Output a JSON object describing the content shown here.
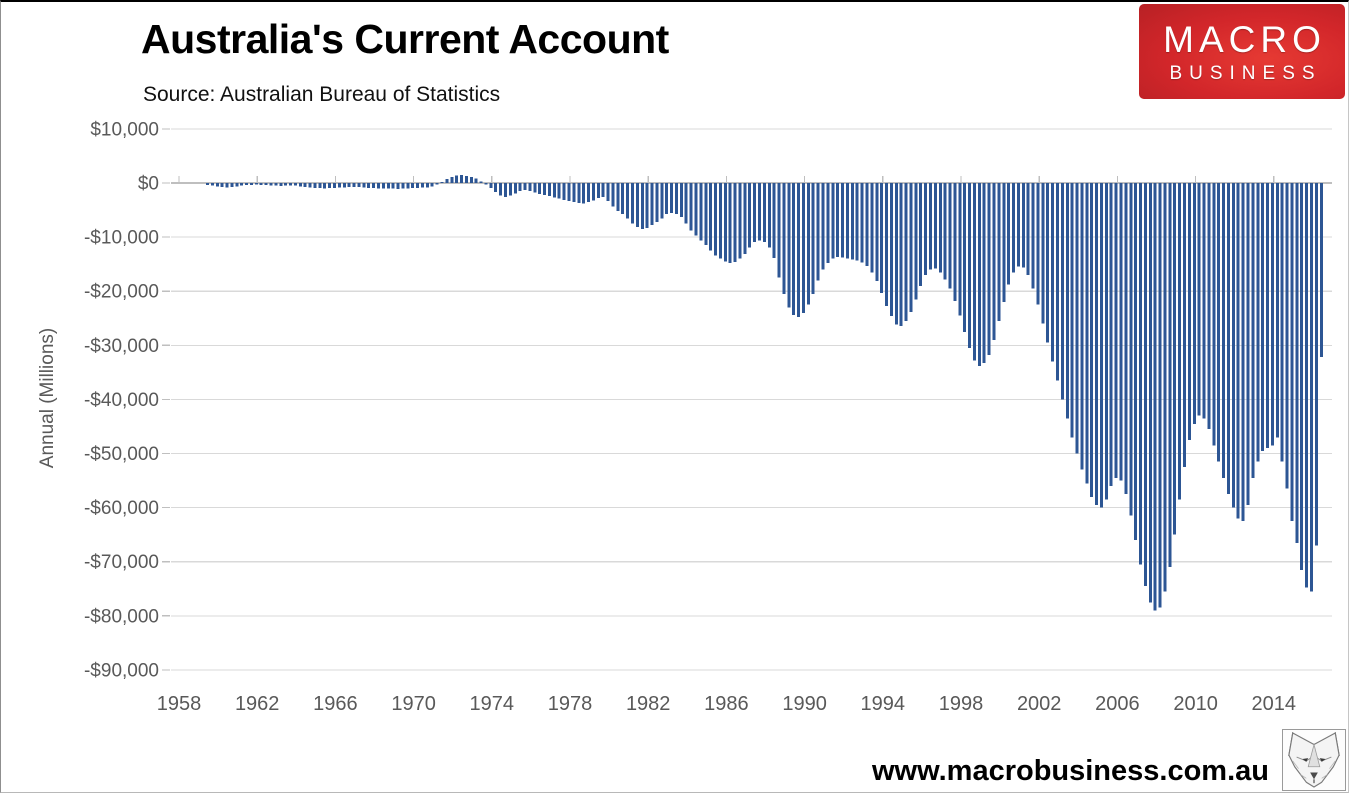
{
  "header": {
    "title": "Australia's Current Account",
    "source": "Source: Australian Bureau of Statistics",
    "logo": {
      "line1": "MACRO",
      "line2": "BUSINESS",
      "background_color": "#d2262a",
      "text_color": "#ffffff"
    }
  },
  "footer": {
    "watermark": "www.macrobusiness.com.au",
    "wolf_icon": "wolf-sketch-icon"
  },
  "chart_data": {
    "type": "bar",
    "title": "Australia's Current Account",
    "subtitle": "Source: Australian Bureau of Statistics",
    "ylabel": "Annual (Millions)",
    "xlabel": "",
    "unit": "AUD millions, rolling annual total, quarterly observations",
    "grid": true,
    "legend": "none",
    "bar_color": "#2d5694",
    "grid_color": "#d9d9d9",
    "axis_color": "#bfbfbf",
    "tick_text_color": "#595959",
    "ylim": [
      -90000,
      10000
    ],
    "y_ticks": [
      {
        "value": 10000,
        "label": "$10,000"
      },
      {
        "value": 0,
        "label": "$0"
      },
      {
        "value": -10000,
        "label": "-$10,000"
      },
      {
        "value": -20000,
        "label": "-$20,000"
      },
      {
        "value": -30000,
        "label": "-$30,000"
      },
      {
        "value": -40000,
        "label": "-$40,000"
      },
      {
        "value": -50000,
        "label": "-$50,000"
      },
      {
        "value": -60000,
        "label": "-$60,000"
      },
      {
        "value": -70000,
        "label": "-$70,000"
      },
      {
        "value": -80000,
        "label": "-$80,000"
      },
      {
        "value": -90000,
        "label": "-$90,000"
      }
    ],
    "x_ticks": [
      1958,
      1962,
      1966,
      1970,
      1974,
      1978,
      1982,
      1986,
      1990,
      1994,
      1998,
      2002,
      2006,
      2010,
      2014
    ],
    "frequency": "quarterly",
    "start_year": 1959.5,
    "step_years": 0.25,
    "values": [
      -350,
      -500,
      -650,
      -750,
      -800,
      -750,
      -650,
      -500,
      -400,
      -350,
      -300,
      -350,
      -400,
      -450,
      -500,
      -550,
      -500,
      -450,
      -500,
      -600,
      -700,
      -800,
      -900,
      -950,
      -1000,
      -950,
      -900,
      -850,
      -800,
      -750,
      -700,
      -750,
      -800,
      -900,
      -950,
      -1000,
      -1050,
      -1000,
      -1050,
      -1100,
      -1050,
      -1000,
      -950,
      -900,
      -850,
      -800,
      -600,
      -300,
      200,
      700,
      1100,
      1400,
      1500,
      1300,
      1100,
      800,
      300,
      -300,
      -900,
      -1700,
      -2300,
      -2600,
      -2300,
      -1900,
      -1500,
      -1300,
      -1500,
      -1800,
      -2000,
      -2200,
      -2400,
      -2700,
      -2900,
      -3100,
      -3300,
      -3500,
      -3700,
      -3800,
      -3500,
      -3200,
      -2800,
      -2600,
      -3300,
      -4300,
      -5200,
      -5700,
      -6600,
      -7500,
      -8100,
      -8500,
      -8300,
      -7800,
      -7200,
      -6600,
      -5700,
      -5500,
      -5700,
      -6300,
      -7500,
      -8800,
      -9700,
      -10600,
      -11500,
      -12500,
      -13400,
      -14000,
      -14500,
      -14800,
      -14600,
      -14000,
      -13100,
      -11900,
      -10900,
      -10600,
      -10900,
      -11900,
      -13900,
      -17500,
      -20500,
      -23000,
      -24400,
      -24800,
      -24000,
      -22500,
      -20500,
      -18000,
      -16000,
      -14800,
      -14000,
      -13700,
      -13800,
      -14000,
      -14100,
      -14300,
      -14700,
      -15300,
      -16500,
      -18100,
      -20300,
      -22700,
      -24600,
      -26200,
      -26400,
      -25500,
      -23800,
      -21500,
      -19000,
      -17000,
      -16000,
      -15800,
      -16500,
      -17800,
      -19500,
      -21800,
      -24500,
      -27500,
      -30500,
      -32800,
      -33800,
      -33300,
      -31800,
      -29000,
      -25500,
      -22000,
      -18800,
      -16500,
      -15400,
      -15600,
      -17000,
      -19500,
      -22500,
      -26000,
      -29500,
      -33000,
      -36500,
      -40000,
      -43500,
      -47000,
      -50000,
      -53000,
      -55500,
      -58000,
      -59500,
      -60000,
      -58500,
      -56000,
      -54500,
      -55000,
      -57500,
      -61500,
      -66000,
      -70500,
      -74500,
      -77500,
      -79000,
      -78500,
      -75500,
      -71000,
      -65000,
      -58500,
      -52500,
      -47500,
      -44500,
      -43000,
      -43500,
      -45500,
      -48500,
      -51500,
      -54500,
      -57500,
      -60000,
      -62000,
      -62500,
      -59500,
      -54500,
      -51500,
      -49500,
      -49000,
      -48500,
      -47000,
      -51500,
      -56500,
      -62500,
      -66500,
      -71500,
      -74800,
      -75500,
      -67000,
      -32200
    ]
  }
}
